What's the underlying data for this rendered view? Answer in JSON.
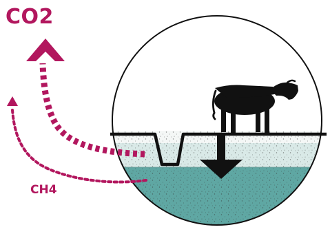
{
  "labels": {
    "co2": "CO2",
    "ch4": "CH4"
  },
  "colors": {
    "accent": "#b2175e",
    "water": "#5fa7a3",
    "upper_soil": "#d9e9e7",
    "surface_band": "#f4f7f6",
    "stroke": "#111111",
    "cow": "#111111"
  },
  "icons": {
    "co2_arrow": "arrow-up-icon",
    "ch4_arrow": "arrow-curved-up-icon",
    "down_arrow": "arrow-down-icon",
    "cow": "cow-icon"
  }
}
